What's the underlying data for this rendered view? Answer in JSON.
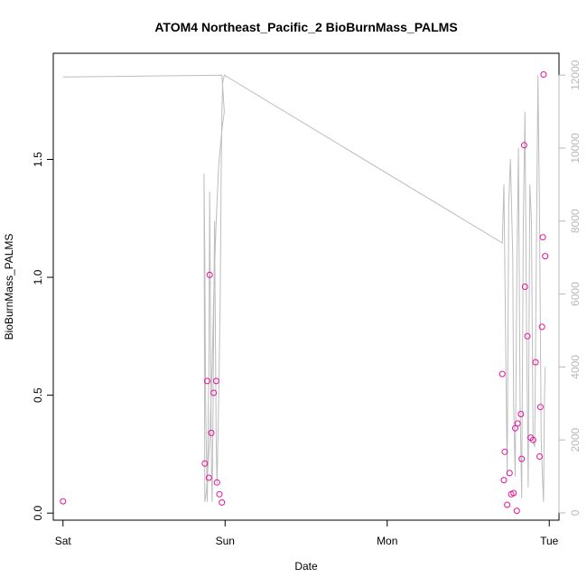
{
  "chart_data": {
    "type": "scatter",
    "title": "ATOM4 Northeast_Pacific_2 BioBurnMass_PALMS",
    "xlabel": "Date",
    "ylabel": "BioBurnMass_PALMS",
    "x_unit": "days from Sat 00:00",
    "xlim": [
      -0.06,
      3.06
    ],
    "ylim": [
      -0.03,
      1.95
    ],
    "x_ticks": [
      {
        "value": 0,
        "label": "Sat"
      },
      {
        "value": 1,
        "label": "Sun"
      },
      {
        "value": 2,
        "label": "Mon"
      },
      {
        "value": 3,
        "label": "Tue"
      }
    ],
    "y_ticks": [
      {
        "value": 0.0,
        "label": "0.0"
      },
      {
        "value": 0.5,
        "label": "0.5"
      },
      {
        "value": 1.0,
        "label": "1.0"
      },
      {
        "value": 1.5,
        "label": "1.5"
      }
    ],
    "y2_ticks": [
      {
        "value": 0,
        "label": "0"
      },
      {
        "value": 2000,
        "label": "2000"
      },
      {
        "value": 4000,
        "label": "4000"
      },
      {
        "value": 6000,
        "label": "6000"
      },
      {
        "value": 8000,
        "label": "8000"
      },
      {
        "value": 10000,
        "label": "10000"
      },
      {
        "value": 12000,
        "label": "12000"
      }
    ],
    "y2lim": [
      -200,
      12600
    ],
    "grid": false,
    "point_color": "#e8119b",
    "line_color": "#bdbdbd",
    "series": [
      {
        "kind": "points",
        "axis": "left",
        "x": [
          0.0,
          0.875,
          0.89,
          0.9,
          0.905,
          0.915,
          0.93,
          0.95,
          0.965,
          0.98,
          0.945,
          2.71,
          2.72,
          2.725,
          2.74,
          2.755,
          2.765,
          2.78,
          2.79,
          2.8,
          2.805,
          2.825,
          2.83,
          2.845,
          2.85,
          2.865,
          2.885,
          2.9,
          2.915,
          2.94,
          2.945,
          2.955,
          2.96,
          2.965,
          2.975
        ],
        "y": [
          0.05,
          0.21,
          0.56,
          0.15,
          1.01,
          0.34,
          0.51,
          0.13,
          0.08,
          0.045,
          0.56,
          0.59,
          0.14,
          0.26,
          0.035,
          0.17,
          0.08,
          0.085,
          0.36,
          0.01,
          0.38,
          0.42,
          0.23,
          1.56,
          0.96,
          0.75,
          0.32,
          0.31,
          0.64,
          0.24,
          0.45,
          0.79,
          1.17,
          1.86,
          1.09
        ]
      },
      {
        "kind": "line",
        "axis": "right",
        "x": [
          0.0,
          0.98,
          0.995,
          0.98,
          0.96,
          0.945,
          0.93,
          0.92,
          0.905,
          0.885,
          0.875,
          0.87,
          0.875,
          0.88,
          0.89,
          0.9,
          0.905,
          0.91,
          0.915,
          0.92,
          0.925,
          0.93,
          0.935,
          0.94,
          0.945,
          0.95,
          0.96,
          0.97,
          0.975,
          0.98,
          0.985,
          0.99,
          0.995,
          2.71,
          2.72,
          2.73,
          2.74,
          2.75,
          2.76,
          2.775,
          2.78,
          2.79,
          2.8,
          2.81,
          2.82,
          2.83,
          2.84,
          2.85,
          2.86,
          2.87,
          2.88,
          2.89,
          2.9,
          2.91,
          2.92,
          2.93,
          2.94,
          2.95,
          2.96,
          2.965,
          2.97,
          2.975
        ],
        "y": [
          11950,
          12000,
          11000,
          10500,
          9500,
          8000,
          6000,
          4000,
          2000,
          600,
          300,
          9300,
          7000,
          3000,
          300,
          4000,
          8800,
          5000,
          1500,
          300,
          2500,
          5500,
          8000,
          5000,
          2000,
          800,
          3000,
          6000,
          9000,
          11000,
          11800,
          11900,
          12000,
          7400,
          9000,
          5000,
          1000,
          8500,
          9700,
          7000,
          3000,
          1000,
          6500,
          10000,
          3000,
          400,
          8000,
          11000,
          5000,
          700,
          9000,
          8000,
          2000,
          1800,
          7000,
          12000,
          8000,
          2000,
          700,
          300,
          3000,
          4000
        ]
      }
    ]
  }
}
